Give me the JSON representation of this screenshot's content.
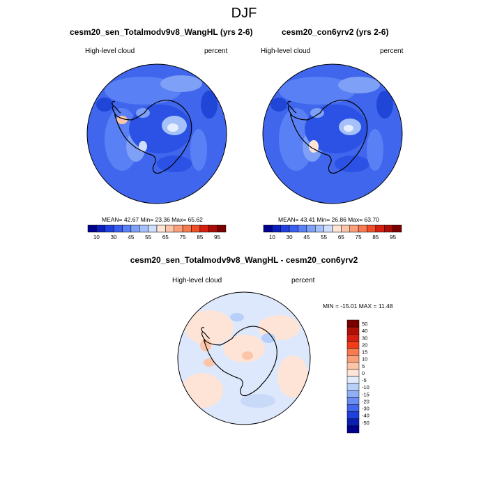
{
  "title": "DJF",
  "panels": [
    {
      "name": "panel-left",
      "run_title": "cesm20_sen_Totalmodv9v8_WangHL (yrs 2-6)",
      "variable": "High-level cloud",
      "units": "percent",
      "stats_text": "MEAN=  42.67  Min=  23.36  Max=  65.62",
      "stats": {
        "mean": 42.67,
        "min": 23.36,
        "max": 65.62
      }
    },
    {
      "name": "panel-right",
      "run_title": "cesm20_con6yrv2 (yrs 2-6)",
      "variable": "High-level cloud",
      "units": "percent",
      "stats_text": "MEAN=  43.41  Min=  26.86  Max=  63.70",
      "stats": {
        "mean": 43.41,
        "min": 26.86,
        "max": 63.7
      }
    }
  ],
  "diff_panel": {
    "run_title": "cesm20_sen_Totalmodv9v8_WangHL - cesm20_con6yrv2",
    "variable": "High-level cloud",
    "units": "percent",
    "stats_text": "MIN = -15.01 MAX =  11.48",
    "stats": {
      "min": -15.01,
      "max": 11.48
    }
  },
  "colorbar_top": {
    "labels": [
      "10",
      "30",
      "45",
      "55",
      "65",
      "75",
      "85",
      "95"
    ],
    "colors": [
      "#00008c",
      "#0a1fbe",
      "#1f3fde",
      "#3a5ff0",
      "#5a80f5",
      "#7ea0f7",
      "#a6c0f9",
      "#cfdefc",
      "#fde4d6",
      "#fcc4a8",
      "#f9a07a",
      "#f77a50",
      "#f04e28",
      "#d42010",
      "#ac0c05",
      "#7a0000"
    ]
  },
  "colorbar_diff": {
    "labels": [
      "50",
      "40",
      "30",
      "20",
      "15",
      "10",
      "5",
      "0",
      "-5",
      "-10",
      "-15",
      "-20",
      "-30",
      "-40",
      "-50"
    ],
    "colors": [
      "#7a0000",
      "#b01005",
      "#d42010",
      "#f03c18",
      "#f77a50",
      "#f9a07a",
      "#fcc4a8",
      "#fde4d6",
      "#e0ebfd",
      "#b8cff9",
      "#90b0f6",
      "#6a8cf3",
      "#4266ee",
      "#1e3fdc",
      "#0a1fb0",
      "#00008c"
    ]
  }
}
